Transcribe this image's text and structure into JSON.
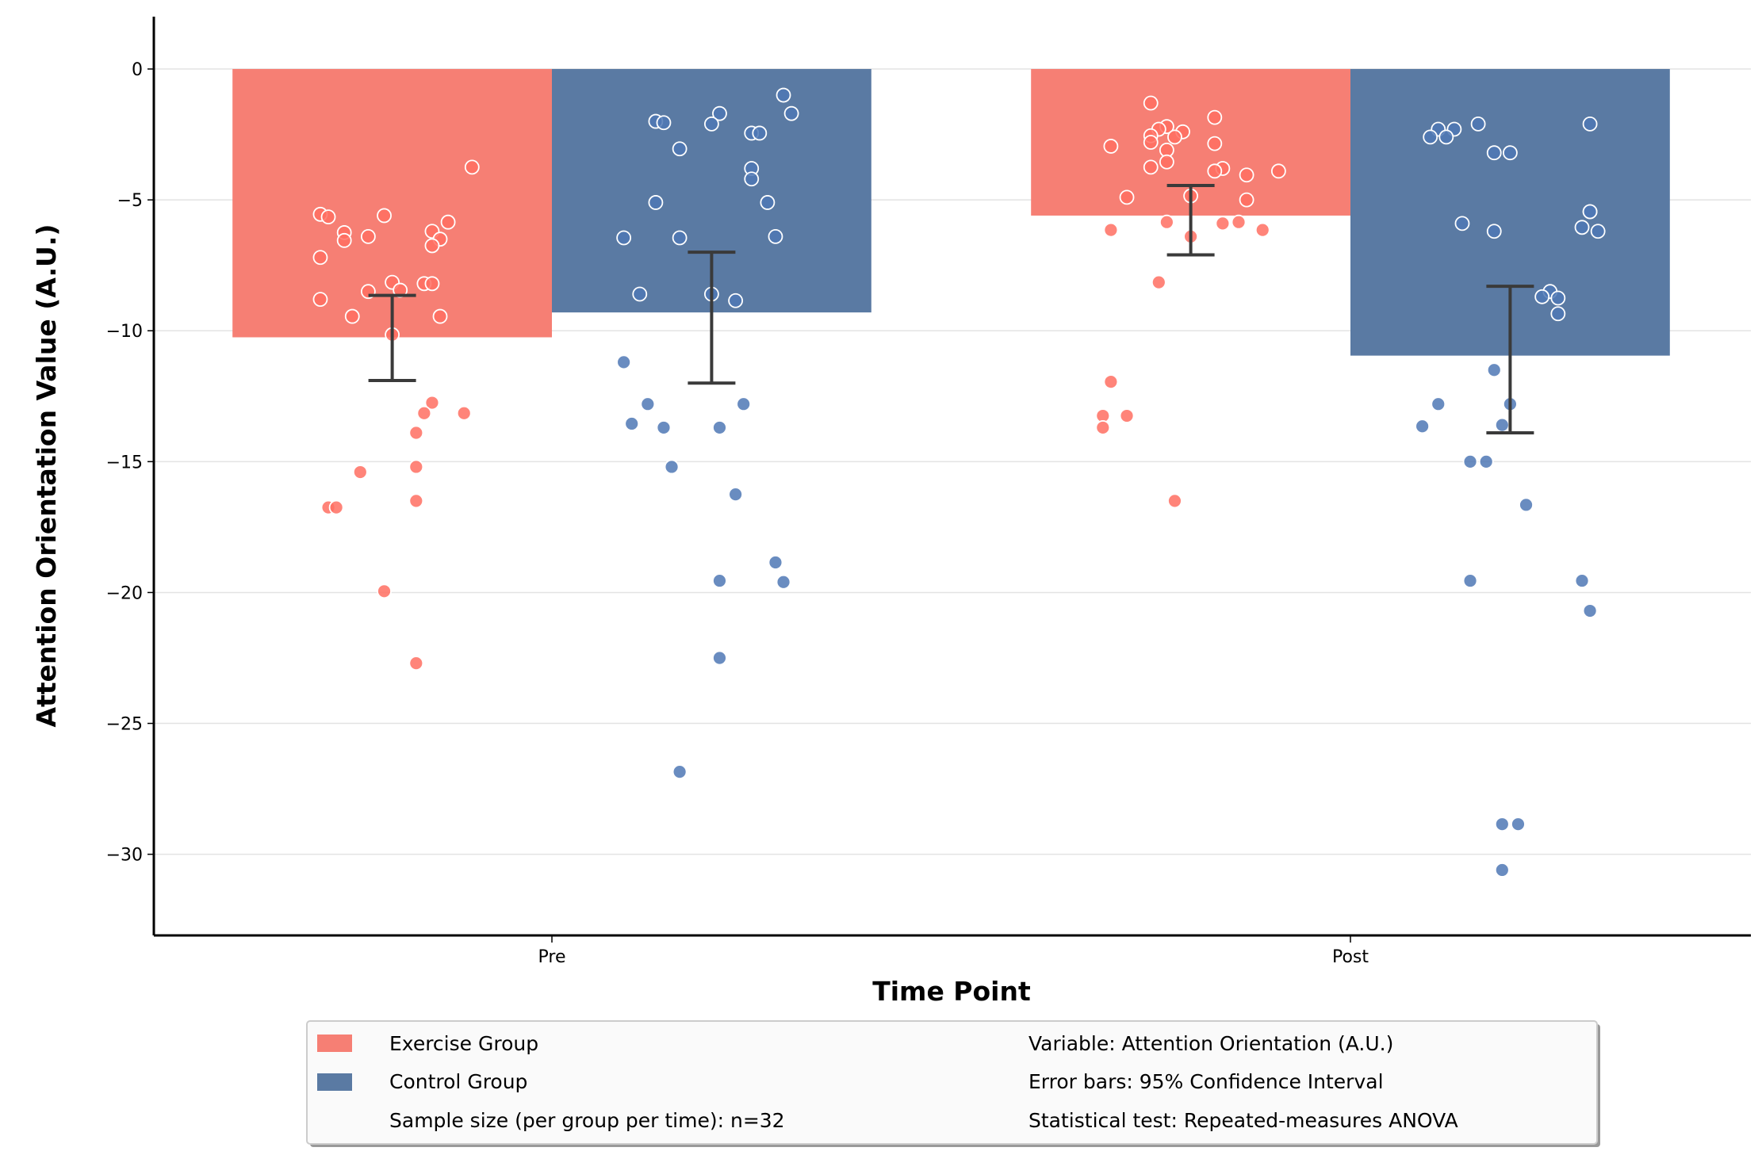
{
  "chart_data": {
    "type": "bar",
    "title": "",
    "xlabel": "Time Point",
    "ylabel": "Attention Orientation Value (A.U.)",
    "categories": [
      "Pre",
      "Post"
    ],
    "ylim": [
      -33.1,
      2.0
    ],
    "yticks": [
      0,
      -5,
      -10,
      -15,
      -20,
      -25,
      -30
    ],
    "ytick_labels": [
      "0",
      "−5",
      "−10",
      "−15",
      "−20",
      "−25",
      "−30"
    ],
    "grid": "horizontal",
    "legend_placement": "bottom-center",
    "series": [
      {
        "name": "Exercise Group",
        "color": "#F67F74",
        "point_color": "#FF6F61",
        "values": [
          -10.25,
          -5.6
        ],
        "ci": [
          [
            -11.9,
            -8.65
          ],
          [
            -7.1,
            -4.45
          ]
        ],
        "points": [
          {
            "x": [
              -0.1,
              -0.29,
              -0.28,
              -0.21,
              -0.13,
              -0.26,
              -0.15,
              -0.26,
              -0.23,
              -0.14,
              -0.15,
              -0.29,
              -0.2,
              -0.16,
              -0.15,
              -0.23,
              -0.19,
              -0.29,
              -0.25,
              -0.14,
              -0.2,
              -0.15,
              -0.16,
              -0.11,
              -0.17,
              -0.17,
              -0.24,
              -0.17,
              -0.28,
              -0.27,
              -0.21,
              -0.17
            ],
            "y": [
              -3.75,
              -5.55,
              -5.65,
              -5.6,
              -5.85,
              -6.25,
              -6.2,
              -6.55,
              -6.4,
              -6.5,
              -6.75,
              -7.2,
              -8.15,
              -8.2,
              -8.2,
              -8.5,
              -8.45,
              -8.8,
              -9.45,
              -9.45,
              -10.15,
              -12.75,
              -13.15,
              -13.15,
              -13.9,
              -15.2,
              -15.4,
              -16.5,
              -16.75,
              -16.75,
              -19.95,
              -22.7
            ]
          },
          {
            "x": [
              0.75,
              0.83,
              0.77,
              0.76,
              0.79,
              0.75,
              0.78,
              0.75,
              0.83,
              0.7,
              0.77,
              0.77,
              0.75,
              0.84,
              0.83,
              0.91,
              0.87,
              0.72,
              0.8,
              0.87,
              0.77,
              0.84,
              0.86,
              0.7,
              0.89,
              0.8,
              0.76,
              0.7,
              0.69,
              0.72,
              0.69,
              0.78
            ],
            "y": [
              -1.3,
              -1.85,
              -2.2,
              -2.3,
              -2.4,
              -2.55,
              -2.6,
              -2.8,
              -2.85,
              -2.95,
              -3.1,
              -3.55,
              -3.75,
              -3.8,
              -3.9,
              -3.9,
              -4.05,
              -4.9,
              -4.85,
              -5.0,
              -5.85,
              -5.9,
              -5.85,
              -6.15,
              -6.15,
              -6.4,
              -8.15,
              -11.95,
              -13.25,
              -13.25,
              -13.7,
              -16.5
            ]
          }
        ]
      },
      {
        "name": "Control Group",
        "color": "#5A7AA3",
        "point_color": "#4F78B5",
        "values": [
          -9.3,
          -10.95
        ],
        "ci": [
          [
            -12.0,
            -7.0
          ],
          [
            -13.9,
            -8.3
          ]
        ],
        "points": [
          {
            "x": [
              0.29,
              0.3,
              0.13,
              0.14,
              0.21,
              0.2,
              0.25,
              0.26,
              0.16,
              0.25,
              0.25,
              0.13,
              0.27,
              0.09,
              0.16,
              0.28,
              0.11,
              0.2,
              0.23,
              0.09,
              0.12,
              0.24,
              0.1,
              0.14,
              0.21,
              0.15,
              0.23,
              0.28,
              0.21,
              0.29,
              0.21,
              0.16
            ],
            "y": [
              -1.0,
              -1.7,
              -2.0,
              -2.05,
              -1.7,
              -2.1,
              -2.45,
              -2.45,
              -3.05,
              -3.8,
              -4.2,
              -5.1,
              -5.1,
              -6.45,
              -6.45,
              -6.4,
              -8.6,
              -8.6,
              -8.85,
              -11.2,
              -12.8,
              -12.8,
              -13.55,
              -13.7,
              -13.7,
              -15.2,
              -16.25,
              -18.85,
              -19.55,
              -19.6,
              -22.5,
              -26.85
            ]
          },
          {
            "x": [
              1.16,
              1.3,
              1.11,
              1.13,
              1.1,
              1.12,
              1.18,
              1.2,
              1.14,
              1.18,
              1.3,
              1.3,
              1.29,
              1.31,
              1.25,
              1.24,
              1.26,
              1.26,
              1.18,
              1.11,
              1.2,
              1.09,
              1.19,
              1.15,
              1.17,
              1.22,
              1.15,
              1.29,
              1.3,
              1.19,
              1.21,
              1.19
            ],
            "y": [
              -2.1,
              -2.1,
              -2.3,
              -2.3,
              -2.6,
              -2.6,
              -3.2,
              -3.2,
              -5.9,
              -6.2,
              -5.45,
              -5.45,
              -6.05,
              -6.2,
              -8.5,
              -8.7,
              -8.75,
              -9.35,
              -11.5,
              -12.8,
              -12.8,
              -13.65,
              -13.6,
              -15.0,
              -15.0,
              -16.65,
              -19.55,
              -19.55,
              -20.7,
              -28.85,
              -28.85,
              -30.6
            ]
          }
        ]
      }
    ],
    "legend": {
      "entries": [
        "Exercise Group",
        "Control Group"
      ],
      "notes": [
        "Sample size (per group per time): n=32",
        "Variable: Attention Orientation (A.U.)",
        "Error bars: 95% Confidence Interval",
        "Statistical test: Repeated-measures ANOVA"
      ]
    }
  }
}
